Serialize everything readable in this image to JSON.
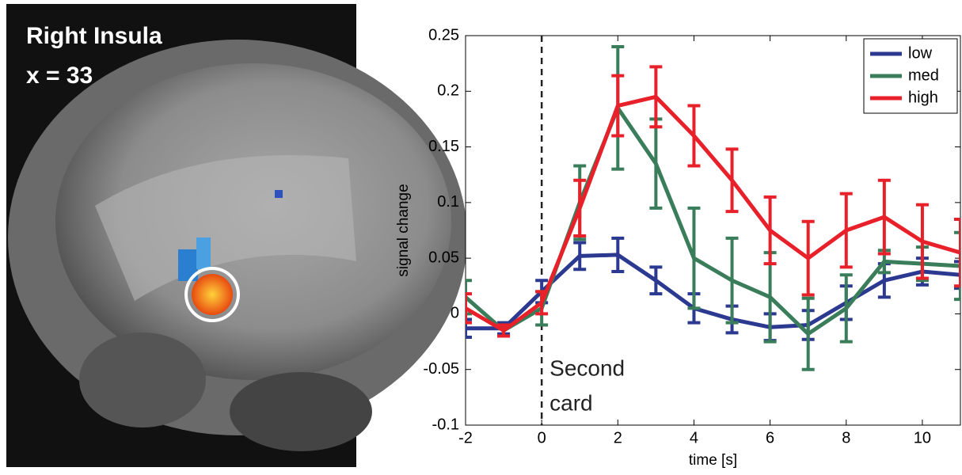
{
  "panel": {
    "title": "Right Insula",
    "subtitle": "x = 33"
  },
  "chart_data": {
    "type": "line",
    "xlabel": "time [s]",
    "ylabel": "signal change",
    "x": [
      -2,
      -1,
      0,
      1,
      2,
      3,
      4,
      5,
      6,
      7,
      8,
      9,
      10,
      11
    ],
    "series": [
      {
        "name": "low",
        "color": "#2b3990",
        "values": [
          -0.013,
          -0.013,
          0.02,
          0.052,
          0.053,
          0.03,
          0.005,
          -0.005,
          -0.012,
          -0.01,
          0.01,
          0.03,
          0.038,
          0.035
        ],
        "errors": [
          0.008,
          0.005,
          0.01,
          0.012,
          0.015,
          0.012,
          0.013,
          0.012,
          0.012,
          0.013,
          0.015,
          0.015,
          0.012,
          0.012
        ]
      },
      {
        "name": "med",
        "color": "#3a7d5a",
        "values": [
          0.015,
          -0.015,
          0.005,
          0.1,
          0.185,
          0.135,
          0.05,
          0.03,
          0.015,
          -0.018,
          0.005,
          0.047,
          0.045,
          0.043
        ],
        "errors": [
          0.015,
          0.005,
          0.015,
          0.033,
          0.055,
          0.04,
          0.045,
          0.038,
          0.04,
          0.032,
          0.03,
          0.01,
          0.015,
          0.03
        ]
      },
      {
        "name": "high",
        "color": "#e8202a",
        "values": [
          0.005,
          -0.015,
          0.01,
          0.095,
          0.187,
          0.195,
          0.16,
          0.12,
          0.075,
          0.05,
          0.075,
          0.087,
          0.065,
          0.055
        ],
        "errors": [
          0.013,
          0.005,
          0.01,
          0.025,
          0.027,
          0.027,
          0.027,
          0.028,
          0.03,
          0.033,
          0.033,
          0.033,
          0.033,
          0.03
        ]
      }
    ],
    "xlim": [
      -2,
      11
    ],
    "ylim": [
      -0.1,
      0.25
    ],
    "xticks": [
      -2,
      0,
      2,
      4,
      6,
      8,
      10
    ],
    "yticks": [
      -0.1,
      -0.05,
      0,
      0.05,
      0.1,
      0.15,
      0.2,
      0.25
    ],
    "vline": 0,
    "annotation": [
      "Second",
      "card"
    ],
    "legend": "upper right"
  }
}
